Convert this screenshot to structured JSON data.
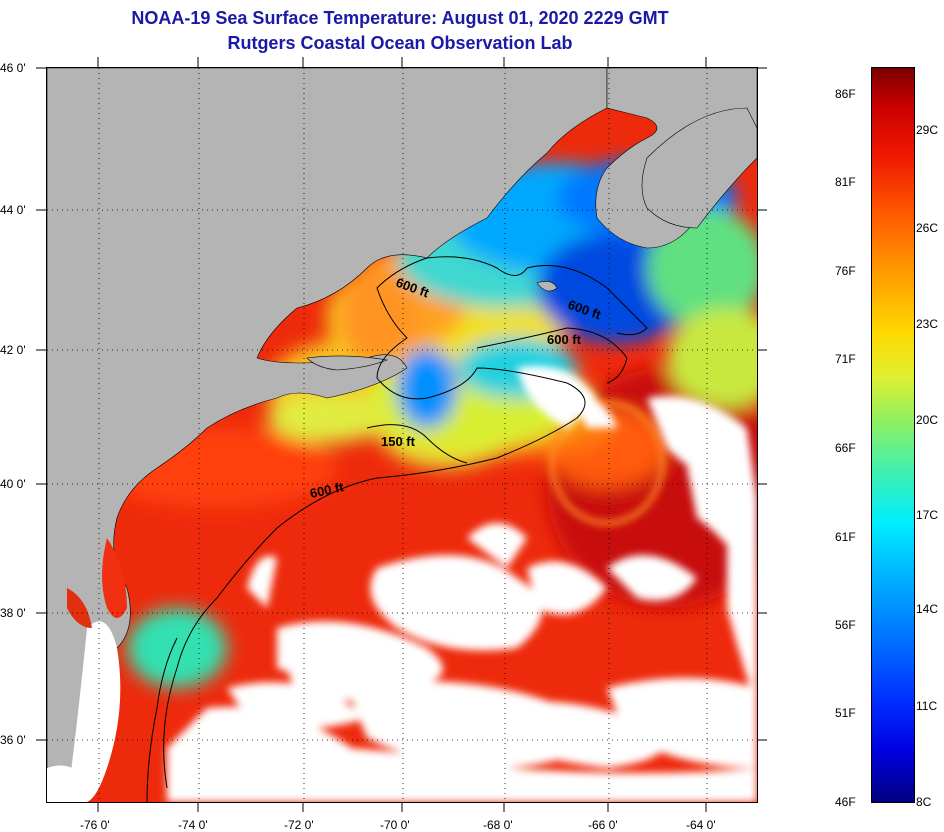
{
  "header": {
    "title": "NOAA-19 Sea Surface Temperature:  August 01, 2020 2229 GMT",
    "subtitle": "Rutgers Coastal Ocean Observation Lab"
  },
  "map": {
    "lat_labels": [
      "46 0'",
      "44 0'",
      "42 0'",
      "40 0'",
      "38 0'",
      "36 0'"
    ],
    "lon_labels": [
      "-76 0'",
      "-74 0'",
      "-72 0'",
      "-70 0'",
      "-68 0'",
      "-66 0'",
      "-64 0'"
    ],
    "depth_contours": [
      "600 ft",
      "600 ft",
      "600 ft",
      "150 ft",
      "600 ft"
    ],
    "colors": {
      "land": "#b4b4b4",
      "cloud": "#ffffff",
      "warm": "#f03010",
      "cold": "#1040e0"
    }
  },
  "colorbar": {
    "fahrenheit_labels": [
      "86F",
      "81F",
      "76F",
      "71F",
      "66F",
      "61F",
      "56F",
      "51F",
      "46F"
    ],
    "celsius_labels": [
      "29C",
      "26C",
      "23C",
      "20C",
      "17C",
      "14C",
      "11C",
      "8C"
    ],
    "min_color": "#00007f",
    "max_color": "#7a0000"
  }
}
